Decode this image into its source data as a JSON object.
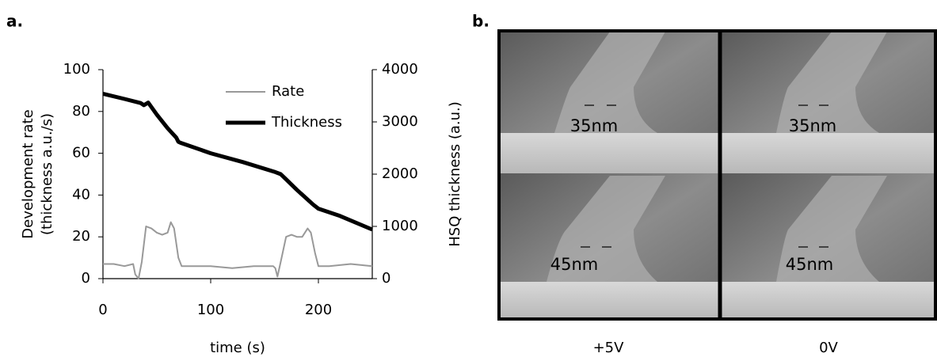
{
  "chart_data": {
    "type": "line",
    "xlabel": "time (s)",
    "ylabel": [
      "Development rate",
      "(thickness a.u./s)"
    ],
    "y2label": "HSQ thickness (a.u.)",
    "xlim": [
      0,
      250
    ],
    "xticks": [
      0,
      100,
      200
    ],
    "ylim": [
      0,
      100
    ],
    "yticks": [
      0,
      20,
      40,
      60,
      80,
      100
    ],
    "y2lim": [
      0,
      4000
    ],
    "y2ticks": [
      0,
      1000,
      2000,
      3000,
      4000
    ],
    "legend": "upper right",
    "series": [
      {
        "name": "Rate",
        "color": "#999999",
        "x": [
          0,
          10,
          20,
          28,
          30,
          33,
          36,
          40,
          45,
          50,
          55,
          60,
          63,
          66,
          70,
          73,
          80,
          100,
          120,
          140,
          158,
          160,
          162,
          165,
          170,
          175,
          180,
          185,
          190,
          193,
          197,
          200,
          210,
          230,
          250
        ],
        "values": [
          7,
          7,
          6,
          7,
          2,
          0,
          8,
          25,
          24,
          22,
          21,
          22,
          27,
          24,
          10,
          6,
          6,
          6,
          5,
          6,
          6,
          5,
          1,
          8,
          20,
          21,
          20,
          20,
          24,
          22,
          12,
          6,
          6,
          7,
          6
        ]
      },
      {
        "name": "Thickness",
        "color": "#000000",
        "axis": "y2",
        "x": [
          0,
          20,
          35,
          38,
          42,
          50,
          60,
          68,
          70,
          72,
          100,
          130,
          160,
          165,
          170,
          180,
          195,
          200,
          220,
          250
        ],
        "values": [
          3540,
          3440,
          3360,
          3320,
          3370,
          3140,
          2880,
          2700,
          2620,
          2600,
          2400,
          2230,
          2040,
          2000,
          1900,
          1700,
          1420,
          1340,
          1200,
          940
        ]
      }
    ]
  },
  "panel_labels": [
    "a.",
    "b."
  ],
  "images": {
    "scale_labels": [
      "35nm",
      "35nm",
      "45nm",
      "45nm"
    ],
    "columns": [
      "+5V",
      "0V"
    ]
  }
}
